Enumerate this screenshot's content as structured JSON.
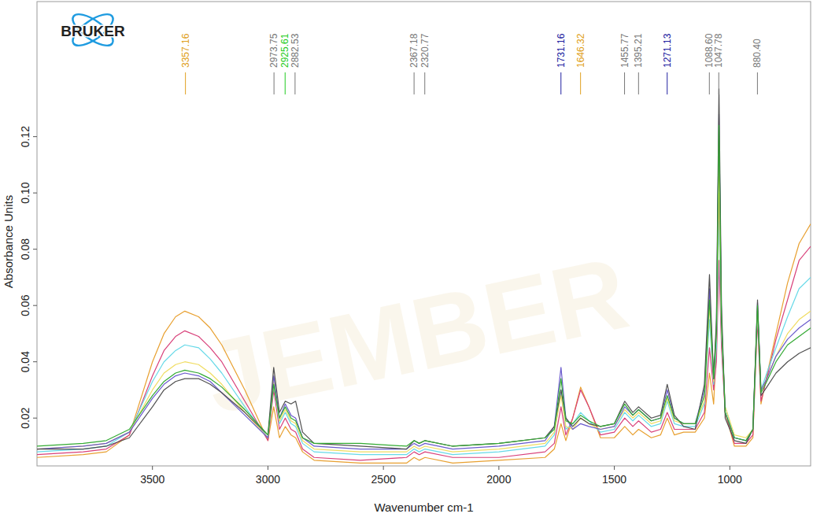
{
  "chart_data": {
    "type": "line",
    "logo": "BRUKER",
    "watermark": "JEMBER",
    "x_label": "Wavenumber cm-1",
    "y_label": "Absorbance Units",
    "xlim": [
      4000,
      650
    ],
    "ylim": [
      0.003,
      0.168
    ],
    "xticks": [
      3500,
      3000,
      2500,
      2000,
      1500,
      1000
    ],
    "yticks": [
      0.02,
      0.04,
      0.06,
      0.08,
      {
        "value": 0.1,
        "label": "0.10"
      },
      0.12
    ],
    "grid": false,
    "x": [
      4000,
      3800,
      3700,
      3600,
      3500,
      3450,
      3400,
      3360,
      3300,
      3250,
      3200,
      3100,
      3000,
      2975,
      2950,
      2925,
      2900,
      2880,
      2850,
      2800,
      2600,
      2400,
      2367,
      2345,
      2320,
      2200,
      2000,
      1800,
      1760,
      1731,
      1710,
      1680,
      1646,
      1610,
      1560,
      1500,
      1455,
      1420,
      1395,
      1340,
      1300,
      1271,
      1240,
      1200,
      1150,
      1110,
      1088,
      1070,
      1058,
      1047,
      1036,
      1020,
      980,
      930,
      900,
      880,
      865,
      840,
      800,
      750,
      700,
      650
    ],
    "series": [
      {
        "color": "#e8a030",
        "values": [
          0.006,
          0.007,
          0.008,
          0.014,
          0.04,
          0.05,
          0.056,
          0.058,
          0.056,
          0.052,
          0.046,
          0.03,
          0.012,
          0.024,
          0.013,
          0.017,
          0.014,
          0.013,
          0.008,
          0.005,
          0.004,
          0.004,
          0.006,
          0.005,
          0.006,
          0.004,
          0.005,
          0.006,
          0.009,
          0.018,
          0.012,
          0.02,
          0.031,
          0.024,
          0.013,
          0.013,
          0.017,
          0.014,
          0.016,
          0.013,
          0.014,
          0.02,
          0.014,
          0.015,
          0.015,
          0.02,
          0.036,
          0.025,
          0.045,
          0.118,
          0.05,
          0.022,
          0.01,
          0.01,
          0.013,
          0.058,
          0.025,
          0.035,
          0.05,
          0.068,
          0.082,
          0.089
        ]
      },
      {
        "color": "#d8407a",
        "values": [
          0.007,
          0.008,
          0.009,
          0.014,
          0.035,
          0.044,
          0.049,
          0.051,
          0.049,
          0.045,
          0.04,
          0.026,
          0.012,
          0.03,
          0.016,
          0.02,
          0.016,
          0.015,
          0.009,
          0.006,
          0.005,
          0.006,
          0.008,
          0.007,
          0.008,
          0.006,
          0.006,
          0.008,
          0.011,
          0.024,
          0.014,
          0.02,
          0.03,
          0.024,
          0.014,
          0.015,
          0.02,
          0.017,
          0.019,
          0.015,
          0.016,
          0.022,
          0.016,
          0.016,
          0.016,
          0.022,
          0.045,
          0.03,
          0.04,
          0.076,
          0.045,
          0.022,
          0.011,
          0.011,
          0.014,
          0.055,
          0.026,
          0.034,
          0.048,
          0.062,
          0.076,
          0.081
        ]
      },
      {
        "color": "#66d9e8",
        "values": [
          0.008,
          0.009,
          0.01,
          0.015,
          0.033,
          0.04,
          0.044,
          0.046,
          0.045,
          0.041,
          0.036,
          0.024,
          0.013,
          0.032,
          0.018,
          0.022,
          0.018,
          0.017,
          0.011,
          0.008,
          0.007,
          0.007,
          0.009,
          0.008,
          0.009,
          0.007,
          0.008,
          0.01,
          0.014,
          0.03,
          0.016,
          0.018,
          0.022,
          0.019,
          0.015,
          0.016,
          0.022,
          0.019,
          0.021,
          0.017,
          0.018,
          0.026,
          0.018,
          0.017,
          0.017,
          0.025,
          0.055,
          0.032,
          0.045,
          0.09,
          0.05,
          0.024,
          0.013,
          0.012,
          0.016,
          0.058,
          0.03,
          0.036,
          0.045,
          0.056,
          0.066,
          0.07
        ]
      },
      {
        "color": "#f0dc60",
        "values": [
          0.009,
          0.01,
          0.011,
          0.015,
          0.03,
          0.036,
          0.039,
          0.04,
          0.039,
          0.036,
          0.032,
          0.022,
          0.013,
          0.033,
          0.019,
          0.023,
          0.019,
          0.018,
          0.012,
          0.009,
          0.008,
          0.008,
          0.01,
          0.009,
          0.01,
          0.008,
          0.009,
          0.011,
          0.015,
          0.028,
          0.017,
          0.016,
          0.02,
          0.018,
          0.016,
          0.017,
          0.023,
          0.02,
          0.022,
          0.018,
          0.019,
          0.027,
          0.019,
          0.018,
          0.018,
          0.026,
          0.06,
          0.033,
          0.05,
          0.1,
          0.052,
          0.024,
          0.014,
          0.013,
          0.016,
          0.059,
          0.03,
          0.034,
          0.042,
          0.05,
          0.055,
          0.058
        ]
      },
      {
        "color": "#6a5acd",
        "values": [
          0.009,
          0.01,
          0.011,
          0.015,
          0.027,
          0.032,
          0.035,
          0.036,
          0.035,
          0.033,
          0.029,
          0.021,
          0.013,
          0.035,
          0.02,
          0.025,
          0.021,
          0.02,
          0.013,
          0.01,
          0.009,
          0.009,
          0.011,
          0.01,
          0.011,
          0.009,
          0.01,
          0.012,
          0.017,
          0.038,
          0.02,
          0.016,
          0.018,
          0.017,
          0.016,
          0.017,
          0.024,
          0.021,
          0.023,
          0.019,
          0.02,
          0.03,
          0.02,
          0.018,
          0.018,
          0.03,
          0.066,
          0.034,
          0.052,
          0.128,
          0.055,
          0.022,
          0.013,
          0.012,
          0.016,
          0.061,
          0.03,
          0.034,
          0.042,
          0.048,
          0.052,
          0.055
        ]
      },
      {
        "color": "#505050",
        "values": [
          0.009,
          0.009,
          0.01,
          0.013,
          0.024,
          0.03,
          0.033,
          0.034,
          0.034,
          0.032,
          0.029,
          0.022,
          0.014,
          0.038,
          0.022,
          0.026,
          0.025,
          0.026,
          0.015,
          0.011,
          0.01,
          0.009,
          0.012,
          0.011,
          0.012,
          0.01,
          0.011,
          0.013,
          0.017,
          0.03,
          0.02,
          0.017,
          0.02,
          0.018,
          0.017,
          0.018,
          0.026,
          0.022,
          0.024,
          0.02,
          0.021,
          0.032,
          0.021,
          0.017,
          0.016,
          0.032,
          0.071,
          0.034,
          0.055,
          0.137,
          0.06,
          0.02,
          0.012,
          0.011,
          0.016,
          0.062,
          0.028,
          0.031,
          0.036,
          0.04,
          0.043,
          0.045
        ]
      },
      {
        "color": "#33aa33",
        "values": [
          0.01,
          0.011,
          0.012,
          0.016,
          0.028,
          0.033,
          0.036,
          0.037,
          0.036,
          0.034,
          0.031,
          0.023,
          0.014,
          0.032,
          0.02,
          0.024,
          0.02,
          0.019,
          0.013,
          0.011,
          0.011,
          0.01,
          0.012,
          0.011,
          0.012,
          0.01,
          0.011,
          0.013,
          0.016,
          0.034,
          0.019,
          0.018,
          0.021,
          0.019,
          0.017,
          0.018,
          0.025,
          0.021,
          0.023,
          0.019,
          0.02,
          0.028,
          0.02,
          0.018,
          0.018,
          0.028,
          0.062,
          0.034,
          0.05,
          0.124,
          0.054,
          0.022,
          0.013,
          0.012,
          0.016,
          0.06,
          0.029,
          0.033,
          0.04,
          0.046,
          0.049,
          0.052
        ]
      }
    ],
    "annotations": [
      {
        "value": 3357.16,
        "label": "3357.16",
        "color": "#e0a020"
      },
      {
        "value": 2973.75,
        "label": "2973.75",
        "color": "#777777"
      },
      {
        "value": 2925.61,
        "label": "2925.61",
        "color": "#22cc22"
      },
      {
        "value": 2882.53,
        "label": "2882.53",
        "color": "#777777"
      },
      {
        "value": 2367.18,
        "label": "2367.18",
        "color": "#777777"
      },
      {
        "value": 2320.77,
        "label": "2320.77",
        "color": "#777777"
      },
      {
        "value": 1731.16,
        "label": "1731.16",
        "color": "#2020a0"
      },
      {
        "value": 1646.32,
        "label": "1646.32",
        "color": "#e0a020"
      },
      {
        "value": 1455.77,
        "label": "1455.77",
        "color": "#777777"
      },
      {
        "value": 1395.21,
        "label": "1395.21",
        "color": "#777777"
      },
      {
        "value": 1271.13,
        "label": "1271.13",
        "color": "#2020a0"
      },
      {
        "value": 1088.6,
        "label": "1088.60",
        "color": "#777777"
      },
      {
        "value": 1047.78,
        "label": "1047.78",
        "color": "#777777"
      },
      {
        "value": 880.4,
        "label": "880.40",
        "color": "#777777"
      }
    ]
  }
}
